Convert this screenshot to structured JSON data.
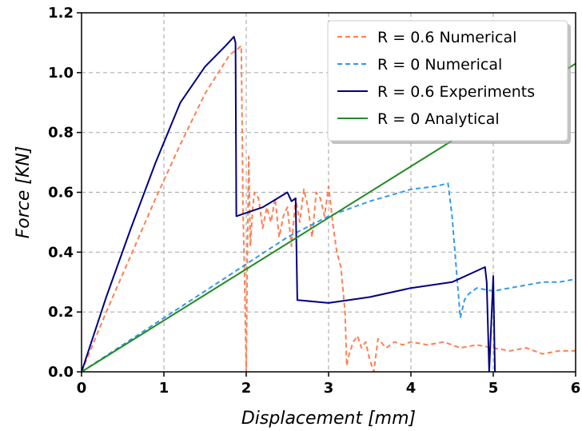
{
  "chart_data": {
    "type": "line",
    "xlabel": "Displacement [mm]",
    "ylabel": "Force [KN]",
    "xlim": [
      0,
      6
    ],
    "ylim": [
      0,
      1.2
    ],
    "xticks": [
      "0",
      "1",
      "2",
      "3",
      "4",
      "5",
      "6"
    ],
    "yticks": [
      "0.0",
      "0.2",
      "0.4",
      "0.6",
      "0.8",
      "1.0",
      "1.2"
    ],
    "grid": true,
    "legend_position": "top-right",
    "series": [
      {
        "name": "R = 0.6 Numerical",
        "color": "#ff7f50",
        "dash": true,
        "x": [
          0,
          0.3,
          0.6,
          0.9,
          1.2,
          1.5,
          1.8,
          1.9,
          1.94,
          1.96,
          1.98,
          2.0,
          2.01,
          2.03,
          2.05,
          2.08,
          2.1,
          2.15,
          2.2,
          2.25,
          2.3,
          2.35,
          2.4,
          2.45,
          2.5,
          2.55,
          2.6,
          2.65,
          2.7,
          2.75,
          2.8,
          2.85,
          2.9,
          2.95,
          3.0,
          3.05,
          3.1,
          3.15,
          3.2,
          3.22,
          3.25,
          3.3,
          3.35,
          3.4,
          3.45,
          3.5,
          3.55,
          3.6,
          3.7,
          3.8,
          3.9,
          4.0,
          4.2,
          4.4,
          4.6,
          4.8,
          5.0,
          5.2,
          5.4,
          5.6,
          5.8,
          6.0
        ],
        "y": [
          0,
          0.2,
          0.39,
          0.58,
          0.76,
          0.93,
          1.06,
          1.08,
          1.09,
          0.55,
          0.32,
          0.0,
          0.3,
          0.72,
          0.42,
          0.55,
          0.6,
          0.58,
          0.48,
          0.55,
          0.5,
          0.58,
          0.45,
          0.52,
          0.55,
          0.42,
          0.58,
          0.5,
          0.61,
          0.55,
          0.45,
          0.6,
          0.58,
          0.52,
          0.62,
          0.5,
          0.4,
          0.35,
          0.2,
          0.02,
          0.06,
          0.1,
          0.12,
          0.08,
          0.1,
          0.04,
          0.0,
          0.11,
          0.08,
          0.1,
          0.09,
          0.1,
          0.09,
          0.1,
          0.08,
          0.09,
          0.08,
          0.07,
          0.08,
          0.06,
          0.07,
          0.07
        ]
      },
      {
        "name": "R = 0 Numerical",
        "color": "#3399ee",
        "dash": true,
        "x": [
          0,
          0.5,
          1.0,
          1.5,
          2.0,
          2.5,
          3.0,
          3.5,
          4.0,
          4.3,
          4.45,
          4.5,
          4.55,
          4.6,
          4.65,
          4.7,
          4.8,
          5.0,
          5.2,
          5.4,
          5.6,
          5.8,
          6.0
        ],
        "y": [
          0,
          0.09,
          0.18,
          0.27,
          0.36,
          0.45,
          0.52,
          0.57,
          0.61,
          0.62,
          0.63,
          0.52,
          0.35,
          0.18,
          0.24,
          0.26,
          0.28,
          0.27,
          0.28,
          0.29,
          0.3,
          0.3,
          0.31
        ]
      },
      {
        "name": "R = 0.6 Experiments",
        "color": "#000080",
        "dash": false,
        "x": [
          0,
          0.3,
          0.6,
          0.9,
          1.2,
          1.5,
          1.75,
          1.85,
          1.87,
          1.88,
          2.2,
          2.5,
          2.55,
          2.6,
          2.62,
          3.0,
          3.5,
          4.0,
          4.5,
          4.9,
          4.92,
          4.95,
          5.0,
          5.02
        ],
        "y": [
          0,
          0.25,
          0.48,
          0.7,
          0.9,
          1.02,
          1.09,
          1.12,
          1.1,
          0.52,
          0.55,
          0.6,
          0.57,
          0.58,
          0.24,
          0.23,
          0.25,
          0.28,
          0.3,
          0.35,
          0.3,
          0.0,
          0.32,
          0.0
        ]
      },
      {
        "name": "R = 0 Analytical",
        "color": "#228b22",
        "dash": false,
        "x": [
          0,
          6
        ],
        "y": [
          0,
          1.03
        ]
      }
    ]
  }
}
